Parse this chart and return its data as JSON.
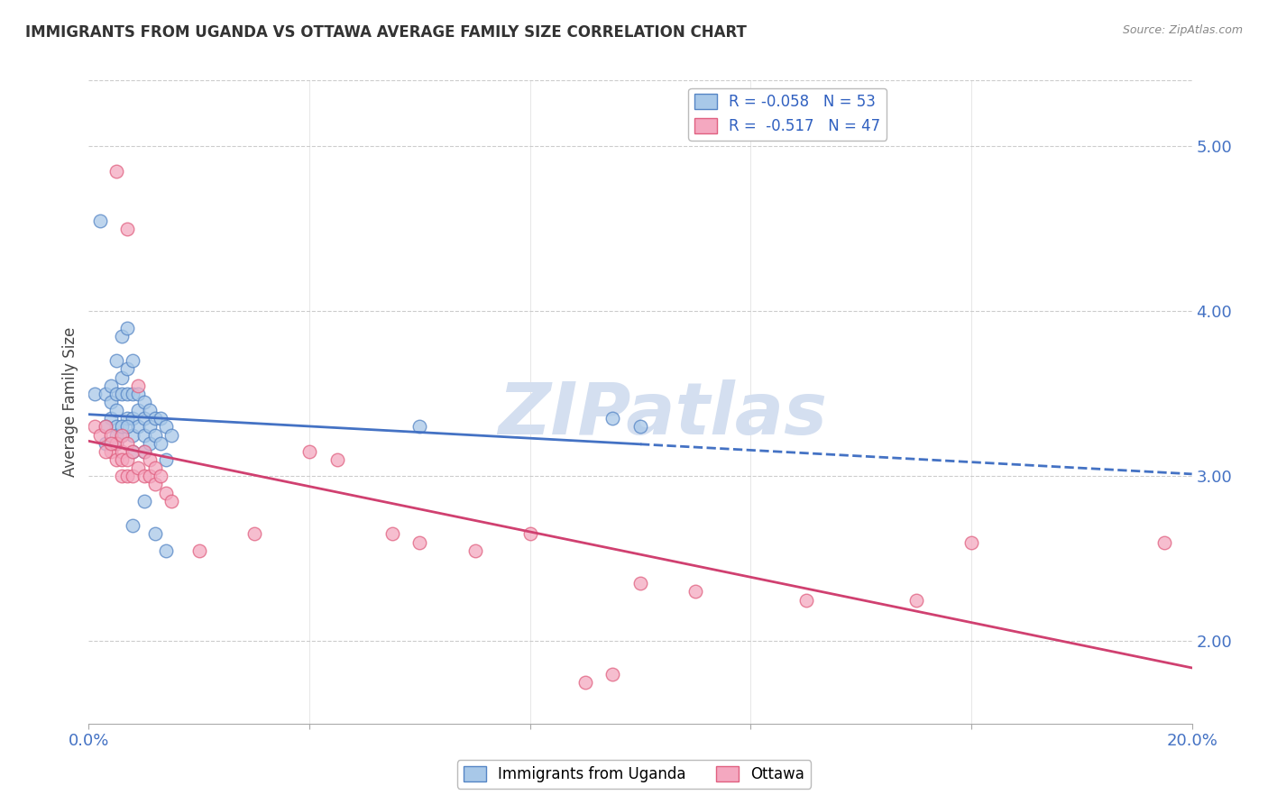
{
  "title": "IMMIGRANTS FROM UGANDA VS OTTAWA AVERAGE FAMILY SIZE CORRELATION CHART",
  "source": "Source: ZipAtlas.com",
  "ylabel": "Average Family Size",
  "xlim": [
    0.0,
    0.2
  ],
  "ylim": [
    1.5,
    5.4
  ],
  "yticks_right": [
    2.0,
    3.0,
    4.0,
    5.0
  ],
  "legend_label1": "Immigrants from Uganda",
  "legend_label2": "Ottawa",
  "R1": -0.058,
  "N1": 53,
  "R2": -0.517,
  "N2": 47,
  "blue_color": "#a8c8e8",
  "pink_color": "#f4a8c0",
  "blue_edge_color": "#5585c5",
  "pink_edge_color": "#e06080",
  "blue_line_color": "#4472c4",
  "pink_line_color": "#d04070",
  "blue_scatter": [
    [
      0.001,
      3.5
    ],
    [
      0.002,
      4.55
    ],
    [
      0.003,
      3.5
    ],
    [
      0.004,
      3.55
    ],
    [
      0.004,
      3.45
    ],
    [
      0.004,
      3.35
    ],
    [
      0.005,
      3.7
    ],
    [
      0.005,
      3.5
    ],
    [
      0.005,
      3.4
    ],
    [
      0.005,
      3.3
    ],
    [
      0.006,
      3.85
    ],
    [
      0.006,
      3.6
    ],
    [
      0.006,
      3.5
    ],
    [
      0.007,
      3.9
    ],
    [
      0.007,
      3.65
    ],
    [
      0.007,
      3.5
    ],
    [
      0.007,
      3.35
    ],
    [
      0.008,
      3.7
    ],
    [
      0.008,
      3.5
    ],
    [
      0.008,
      3.35
    ],
    [
      0.008,
      3.25
    ],
    [
      0.009,
      3.5
    ],
    [
      0.009,
      3.4
    ],
    [
      0.009,
      3.3
    ],
    [
      0.01,
      3.45
    ],
    [
      0.01,
      3.35
    ],
    [
      0.01,
      3.25
    ],
    [
      0.01,
      3.15
    ],
    [
      0.011,
      3.4
    ],
    [
      0.011,
      3.3
    ],
    [
      0.011,
      3.2
    ],
    [
      0.012,
      3.35
    ],
    [
      0.012,
      3.25
    ],
    [
      0.013,
      3.35
    ],
    [
      0.013,
      3.2
    ],
    [
      0.014,
      3.3
    ],
    [
      0.014,
      3.1
    ],
    [
      0.015,
      3.25
    ],
    [
      0.003,
      3.3
    ],
    [
      0.003,
      3.2
    ],
    [
      0.005,
      3.25
    ],
    [
      0.006,
      3.25
    ],
    [
      0.008,
      2.7
    ],
    [
      0.01,
      2.85
    ],
    [
      0.014,
      2.55
    ],
    [
      0.012,
      2.65
    ],
    [
      0.006,
      3.3
    ],
    [
      0.007,
      3.3
    ],
    [
      0.095,
      3.35
    ],
    [
      0.1,
      3.3
    ],
    [
      0.06,
      3.3
    ],
    [
      0.005,
      3.2
    ],
    [
      0.008,
      3.15
    ]
  ],
  "pink_scatter": [
    [
      0.001,
      3.3
    ],
    [
      0.002,
      3.25
    ],
    [
      0.003,
      3.3
    ],
    [
      0.004,
      3.25
    ],
    [
      0.004,
      3.15
    ],
    [
      0.005,
      4.85
    ],
    [
      0.005,
      3.2
    ],
    [
      0.005,
      3.1
    ],
    [
      0.006,
      3.25
    ],
    [
      0.006,
      3.15
    ],
    [
      0.006,
      3.1
    ],
    [
      0.006,
      3.0
    ],
    [
      0.007,
      4.5
    ],
    [
      0.007,
      3.2
    ],
    [
      0.007,
      3.1
    ],
    [
      0.007,
      3.0
    ],
    [
      0.008,
      3.15
    ],
    [
      0.008,
      3.0
    ],
    [
      0.009,
      3.55
    ],
    [
      0.009,
      3.05
    ],
    [
      0.01,
      3.15
    ],
    [
      0.01,
      3.0
    ],
    [
      0.011,
      3.1
    ],
    [
      0.011,
      3.0
    ],
    [
      0.012,
      3.05
    ],
    [
      0.012,
      2.95
    ],
    [
      0.013,
      3.0
    ],
    [
      0.014,
      2.9
    ],
    [
      0.015,
      2.85
    ],
    [
      0.003,
      3.15
    ],
    [
      0.004,
      3.2
    ],
    [
      0.04,
      3.15
    ],
    [
      0.045,
      3.1
    ],
    [
      0.055,
      2.65
    ],
    [
      0.06,
      2.6
    ],
    [
      0.07,
      2.55
    ],
    [
      0.08,
      2.65
    ],
    [
      0.09,
      1.75
    ],
    [
      0.095,
      1.8
    ],
    [
      0.1,
      2.35
    ],
    [
      0.11,
      2.3
    ],
    [
      0.13,
      2.25
    ],
    [
      0.15,
      2.25
    ],
    [
      0.16,
      2.6
    ],
    [
      0.195,
      2.6
    ],
    [
      0.02,
      2.55
    ],
    [
      0.03,
      2.65
    ]
  ],
  "background_color": "#ffffff",
  "grid_color": "#cccccc",
  "watermark_text": "ZIPatlas",
  "watermark_color": "#d4dff0"
}
